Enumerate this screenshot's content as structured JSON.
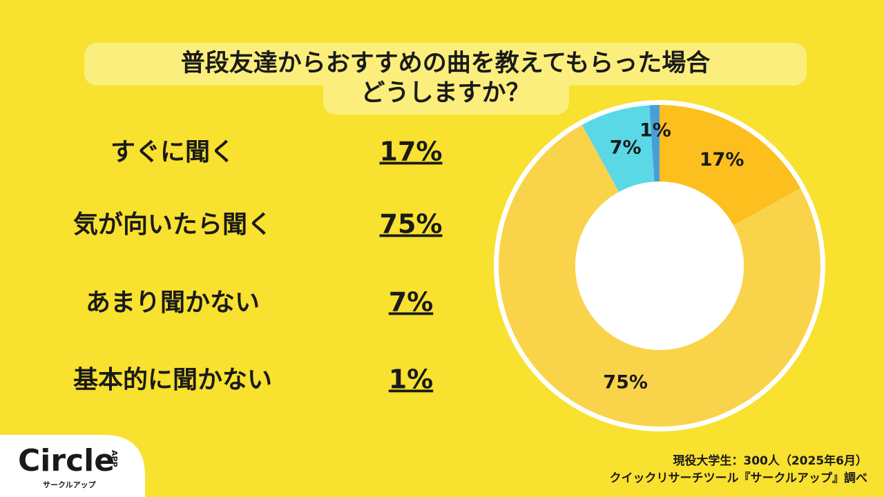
{
  "chart_data": {
    "type": "donut",
    "title": [
      "普段友達からおすすめの曲を教えてもらった場合",
      "どうしますか？"
    ],
    "categories": [
      "すぐに聞く",
      "気が向いたら聞く",
      "あまり聞かない",
      "基本的に聞かない"
    ],
    "values": [
      17,
      75,
      7,
      1
    ],
    "value_labels": [
      "17%",
      "75%",
      "7%",
      "1%"
    ],
    "colors": [
      "#fcbf1e",
      "#f9d34a",
      "#5ad8e6",
      "#4a9ed8"
    ],
    "source": [
      "現役大学生：300人（2025年6月）",
      "クイックリサーチツール『サークルアップ』調べ"
    ]
  },
  "logo": {
    "name": "Circle",
    "badge": "APP",
    "kana": "サークルアップ"
  }
}
